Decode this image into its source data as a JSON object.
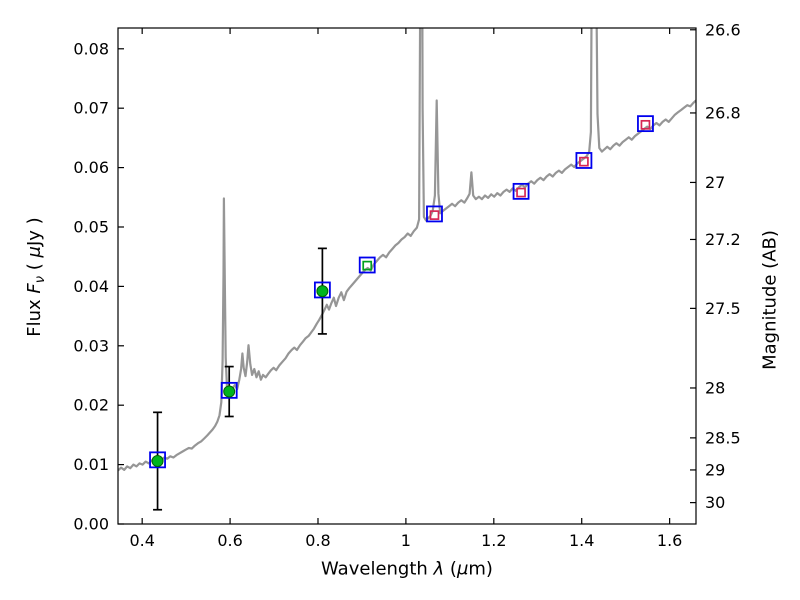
{
  "chart_data": {
    "type": "line",
    "title": "",
    "description": "Galaxy SED: gray model spectrum with observed photometry (green circles with error bars), passband fluxes (blue open squares) and model photometry (small red/green open squares). Left axis flux in microJansky, right axis AB magnitude.",
    "xlabel_parts": {
      "prefix": "Wavelength  ",
      "lambda": "λ",
      "open": " (",
      "mu": "μ",
      "suffix": "m)"
    },
    "ylabel_left_parts": {
      "prefix": "Flux  ",
      "f": "F",
      "nu": "ν",
      "open": "  ( ",
      "mu": "μ",
      "suffix": "Jy )"
    },
    "ylabel_right": "Magnitude (AB)",
    "xlim": [
      0.345,
      1.66
    ],
    "ylim": [
      0,
      0.0835
    ],
    "grid": false,
    "legend": "none",
    "colors": {
      "spectrum": "#969696",
      "blue": "#0000ee",
      "green": "#00b41e",
      "green_edge": "#006400",
      "model_green": "#00a01e",
      "model_red": "#d62755",
      "error": "#000000",
      "frame": "#000000"
    },
    "x_ticks": [
      {
        "label": "0.4",
        "value": 0.4
      },
      {
        "label": "0.6",
        "value": 0.6
      },
      {
        "label": "0.8",
        "value": 0.8
      },
      {
        "label": "1",
        "value": 1.0
      },
      {
        "label": "1.2",
        "value": 1.2
      },
      {
        "label": "1.4",
        "value": 1.4
      },
      {
        "label": "1.6",
        "value": 1.6
      }
    ],
    "y_ticks_left": [
      {
        "label": "0.00",
        "value": 0.0
      },
      {
        "label": "0.01",
        "value": 0.01
      },
      {
        "label": "0.02",
        "value": 0.02
      },
      {
        "label": "0.03",
        "value": 0.03
      },
      {
        "label": "0.04",
        "value": 0.04
      },
      {
        "label": "0.05",
        "value": 0.05
      },
      {
        "label": "0.06",
        "value": 0.06
      },
      {
        "label": "0.07",
        "value": 0.07
      },
      {
        "label": "0.08",
        "value": 0.08
      }
    ],
    "y_ticks_right": [
      {
        "label": "26.6",
        "flux": 0.0832
      },
      {
        "label": "26.8",
        "flux": 0.0692
      },
      {
        "label": "27",
        "flux": 0.0575
      },
      {
        "label": "27.2",
        "flux": 0.0479
      },
      {
        "label": "27.5",
        "flux": 0.0363
      },
      {
        "label": "28",
        "flux": 0.0229
      },
      {
        "label": "28.5",
        "flux": 0.0145
      },
      {
        "label": "29",
        "flux": 0.0091
      },
      {
        "label": "30",
        "flux": 0.0036
      }
    ],
    "photometry": {
      "observed": [
        {
          "x": 0.435,
          "flux": 0.0106,
          "err": 0.0082
        },
        {
          "x": 0.598,
          "flux": 0.0223,
          "err": 0.0042
        },
        {
          "x": 0.81,
          "flux": 0.0392,
          "err": 0.0072
        }
      ],
      "blue_squares": [
        {
          "x": 0.435,
          "flux": 0.0108
        },
        {
          "x": 0.598,
          "flux": 0.0225
        },
        {
          "x": 0.81,
          "flux": 0.0394
        },
        {
          "x": 0.912,
          "flux": 0.0436
        },
        {
          "x": 1.065,
          "flux": 0.0522
        },
        {
          "x": 1.262,
          "flux": 0.056
        },
        {
          "x": 1.405,
          "flux": 0.0612
        },
        {
          "x": 1.545,
          "flux": 0.0674
        }
      ],
      "model_green_squares": [
        {
          "x": 0.912,
          "flux": 0.0435
        }
      ],
      "model_red_squares": [
        {
          "x": 1.065,
          "flux": 0.052
        },
        {
          "x": 1.262,
          "flux": 0.0558
        },
        {
          "x": 1.405,
          "flux": 0.061
        },
        {
          "x": 1.545,
          "flux": 0.0672
        }
      ]
    },
    "spectrum": {
      "name": "model-spectrum",
      "points": [
        [
          0.345,
          0.009
        ],
        [
          0.352,
          0.0095
        ],
        [
          0.359,
          0.0091
        ],
        [
          0.366,
          0.0097
        ],
        [
          0.373,
          0.0094
        ],
        [
          0.38,
          0.01
        ],
        [
          0.387,
          0.0097
        ],
        [
          0.394,
          0.0102
        ],
        [
          0.401,
          0.01
        ],
        [
          0.408,
          0.0105
        ],
        [
          0.415,
          0.0102
        ],
        [
          0.422,
          0.0107
        ],
        [
          0.429,
          0.0105
        ],
        [
          0.436,
          0.011
        ],
        [
          0.443,
          0.0107
        ],
        [
          0.45,
          0.0112
        ],
        [
          0.457,
          0.011
        ],
        [
          0.464,
          0.0114
        ],
        [
          0.471,
          0.0112
        ],
        [
          0.478,
          0.0116
        ],
        [
          0.485,
          0.0119
        ],
        [
          0.492,
          0.0122
        ],
        [
          0.499,
          0.0125
        ],
        [
          0.506,
          0.0128
        ],
        [
          0.513,
          0.0127
        ],
        [
          0.52,
          0.0132
        ],
        [
          0.527,
          0.0136
        ],
        [
          0.534,
          0.0139
        ],
        [
          0.541,
          0.0144
        ],
        [
          0.548,
          0.0149
        ],
        [
          0.554,
          0.0154
        ],
        [
          0.56,
          0.0159
        ],
        [
          0.566,
          0.0165
        ],
        [
          0.571,
          0.0172
        ],
        [
          0.576,
          0.0183
        ],
        [
          0.58,
          0.0205
        ],
        [
          0.583,
          0.0275
        ],
        [
          0.585,
          0.042
        ],
        [
          0.586,
          0.0548
        ],
        [
          0.588,
          0.041
        ],
        [
          0.59,
          0.028
        ],
        [
          0.593,
          0.0228
        ],
        [
          0.597,
          0.0218
        ],
        [
          0.601,
          0.0222
        ],
        [
          0.606,
          0.0229
        ],
        [
          0.611,
          0.0234
        ],
        [
          0.616,
          0.0227
        ],
        [
          0.621,
          0.0243
        ],
        [
          0.625,
          0.0261
        ],
        [
          0.628,
          0.0287
        ],
        [
          0.631,
          0.0263
        ],
        [
          0.635,
          0.0249
        ],
        [
          0.639,
          0.0273
        ],
        [
          0.642,
          0.0301
        ],
        [
          0.646,
          0.0269
        ],
        [
          0.65,
          0.0251
        ],
        [
          0.655,
          0.0261
        ],
        [
          0.66,
          0.0247
        ],
        [
          0.665,
          0.0257
        ],
        [
          0.67,
          0.0243
        ],
        [
          0.675,
          0.0251
        ],
        [
          0.681,
          0.0247
        ],
        [
          0.687,
          0.0253
        ],
        [
          0.693,
          0.0259
        ],
        [
          0.699,
          0.0263
        ],
        [
          0.705,
          0.0259
        ],
        [
          0.712,
          0.0267
        ],
        [
          0.719,
          0.0273
        ],
        [
          0.726,
          0.0279
        ],
        [
          0.733,
          0.0287
        ],
        [
          0.74,
          0.0293
        ],
        [
          0.746,
          0.0297
        ],
        [
          0.752,
          0.0293
        ],
        [
          0.759,
          0.0301
        ],
        [
          0.766,
          0.0307
        ],
        [
          0.772,
          0.0313
        ],
        [
          0.779,
          0.0317
        ],
        [
          0.785,
          0.0323
        ],
        [
          0.791,
          0.0329
        ],
        [
          0.797,
          0.0337
        ],
        [
          0.803,
          0.0344
        ],
        [
          0.809,
          0.0352
        ],
        [
          0.815,
          0.0361
        ],
        [
          0.82,
          0.0369
        ],
        [
          0.825,
          0.0361
        ],
        [
          0.83,
          0.0371
        ],
        [
          0.836,
          0.0381
        ],
        [
          0.841,
          0.0367
        ],
        [
          0.847,
          0.0381
        ],
        [
          0.853,
          0.039
        ],
        [
          0.859,
          0.0377
        ],
        [
          0.865,
          0.0391
        ],
        [
          0.871,
          0.0397
        ],
        [
          0.878,
          0.0403
        ],
        [
          0.885,
          0.0409
        ],
        [
          0.892,
          0.0415
        ],
        [
          0.899,
          0.0421
        ],
        [
          0.906,
          0.0427
        ],
        [
          0.913,
          0.0431
        ],
        [
          0.92,
          0.0427
        ],
        [
          0.927,
          0.0437
        ],
        [
          0.934,
          0.0443
        ],
        [
          0.941,
          0.0449
        ],
        [
          0.948,
          0.0453
        ],
        [
          0.955,
          0.0449
        ],
        [
          0.962,
          0.0457
        ],
        [
          0.969,
          0.0463
        ],
        [
          0.976,
          0.0469
        ],
        [
          0.983,
          0.0473
        ],
        [
          0.99,
          0.0479
        ],
        [
          0.997,
          0.0483
        ],
        [
          1.004,
          0.0489
        ],
        [
          1.011,
          0.0485
        ],
        [
          1.018,
          0.0493
        ],
        [
          1.025,
          0.0499
        ],
        [
          1.03,
          0.0513
        ],
        [
          1.033,
          0.095
        ],
        [
          1.035,
          0.15
        ],
        [
          1.038,
          0.07
        ],
        [
          1.041,
          0.0517
        ],
        [
          1.046,
          0.0511
        ],
        [
          1.051,
          0.0515
        ],
        [
          1.056,
          0.0519
        ],
        [
          1.061,
          0.0527
        ],
        [
          1.066,
          0.0553
        ],
        [
          1.07,
          0.0713
        ],
        [
          1.074,
          0.0556
        ],
        [
          1.078,
          0.0523
        ],
        [
          1.084,
          0.0527
        ],
        [
          1.091,
          0.0531
        ],
        [
          1.098,
          0.0535
        ],
        [
          1.105,
          0.0539
        ],
        [
          1.112,
          0.0535
        ],
        [
          1.119,
          0.0541
        ],
        [
          1.126,
          0.0545
        ],
        [
          1.133,
          0.0541
        ],
        [
          1.14,
          0.0549
        ],
        [
          1.145,
          0.0556
        ],
        [
          1.149,
          0.0592
        ],
        [
          1.153,
          0.0553
        ],
        [
          1.159,
          0.0547
        ],
        [
          1.166,
          0.0551
        ],
        [
          1.173,
          0.0547
        ],
        [
          1.18,
          0.0553
        ],
        [
          1.187,
          0.0549
        ],
        [
          1.194,
          0.0555
        ],
        [
          1.201,
          0.0551
        ],
        [
          1.208,
          0.0557
        ],
        [
          1.215,
          0.0553
        ],
        [
          1.222,
          0.0559
        ],
        [
          1.229,
          0.0563
        ],
        [
          1.236,
          0.0559
        ],
        [
          1.243,
          0.0565
        ],
        [
          1.25,
          0.0561
        ],
        [
          1.257,
          0.0567
        ],
        [
          1.264,
          0.0571
        ],
        [
          1.271,
          0.0567
        ],
        [
          1.278,
          0.0573
        ],
        [
          1.285,
          0.0577
        ],
        [
          1.292,
          0.0573
        ],
        [
          1.299,
          0.0579
        ],
        [
          1.306,
          0.0583
        ],
        [
          1.313,
          0.0579
        ],
        [
          1.32,
          0.0585
        ],
        [
          1.327,
          0.0589
        ],
        [
          1.334,
          0.0585
        ],
        [
          1.341,
          0.0591
        ],
        [
          1.348,
          0.0595
        ],
        [
          1.355,
          0.0591
        ],
        [
          1.362,
          0.0597
        ],
        [
          1.369,
          0.0601
        ],
        [
          1.376,
          0.0605
        ],
        [
          1.383,
          0.0601
        ],
        [
          1.39,
          0.0607
        ],
        [
          1.397,
          0.0611
        ],
        [
          1.404,
          0.0615
        ],
        [
          1.411,
          0.0619
        ],
        [
          1.417,
          0.0627
        ],
        [
          1.421,
          0.066
        ],
        [
          1.424,
          0.11
        ],
        [
          1.428,
          0.16
        ],
        [
          1.432,
          0.1
        ],
        [
          1.436,
          0.069
        ],
        [
          1.44,
          0.0633
        ],
        [
          1.446,
          0.0627
        ],
        [
          1.452,
          0.0631
        ],
        [
          1.458,
          0.0635
        ],
        [
          1.465,
          0.0631
        ],
        [
          1.472,
          0.0637
        ],
        [
          1.479,
          0.0641
        ],
        [
          1.486,
          0.0637
        ],
        [
          1.493,
          0.0643
        ],
        [
          1.5,
          0.0647
        ],
        [
          1.507,
          0.0651
        ],
        [
          1.514,
          0.0647
        ],
        [
          1.521,
          0.0653
        ],
        [
          1.528,
          0.0657
        ],
        [
          1.535,
          0.0661
        ],
        [
          1.542,
          0.0665
        ],
        [
          1.549,
          0.0669
        ],
        [
          1.556,
          0.0665
        ],
        [
          1.563,
          0.0671
        ],
        [
          1.57,
          0.0675
        ],
        [
          1.577,
          0.0671
        ],
        [
          1.584,
          0.0677
        ],
        [
          1.591,
          0.0681
        ],
        [
          1.598,
          0.0677
        ],
        [
          1.605,
          0.0683
        ],
        [
          1.612,
          0.0689
        ],
        [
          1.619,
          0.0693
        ],
        [
          1.626,
          0.0697
        ],
        [
          1.633,
          0.0701
        ],
        [
          1.64,
          0.0705
        ],
        [
          1.647,
          0.0703
        ],
        [
          1.654,
          0.0709
        ],
        [
          1.66,
          0.0713
        ]
      ]
    }
  }
}
